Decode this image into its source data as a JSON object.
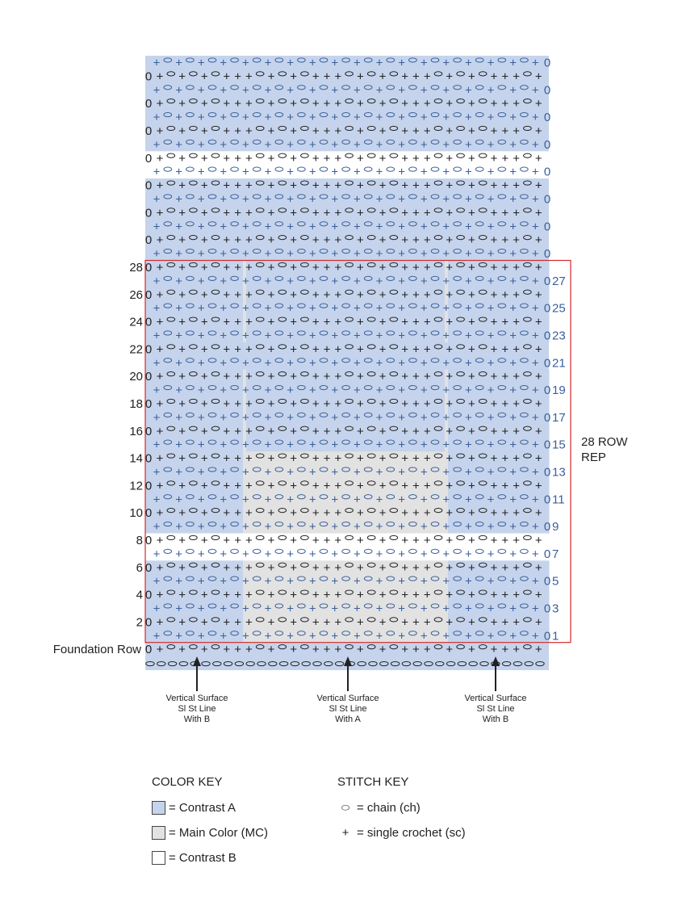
{
  "colors": {
    "contrast_a": "#c5d4ec",
    "main_color": "#e2e2e2",
    "contrast_b": "#ffffff",
    "stitch_dark": "#222222",
    "stitch_blue": "#3a5f9a",
    "rep_box": "#d62a2a"
  },
  "foundation_label": "Foundation Row",
  "rep_label_line1": "28 ROW",
  "rep_label_line2": "REP",
  "left_row_numbers": [
    "28",
    "26",
    "24",
    "22",
    "20",
    "18",
    "16",
    "14",
    "12",
    "10",
    "8",
    "6",
    "4",
    "2"
  ],
  "right_row_numbers": [
    "27",
    "25",
    "23",
    "21",
    "19",
    "17",
    "15",
    "13",
    "11",
    "9",
    "7",
    "5",
    "3",
    "1"
  ],
  "row_start_glyph": "0",
  "section_colors_a": [
    "A",
    "MC",
    "A",
    "MC",
    "A"
  ],
  "section_colors_b": [
    "A",
    "MC",
    "MC",
    "MC",
    "A"
  ],
  "chart_rows": [
    {
      "type": "odd",
      "color": "A"
    },
    {
      "type": "even",
      "color": "A"
    },
    {
      "type": "odd",
      "color": "A"
    },
    {
      "type": "even",
      "color": "A"
    },
    {
      "type": "odd",
      "color": "A"
    },
    {
      "type": "even",
      "color": "A"
    },
    {
      "type": "odd",
      "color": "A"
    },
    {
      "type": "even",
      "color": "B"
    },
    {
      "type": "odd",
      "color": "B"
    },
    {
      "type": "even",
      "color": "A"
    },
    {
      "type": "odd",
      "color": "A"
    },
    {
      "type": "even",
      "color": "A"
    },
    {
      "type": "odd",
      "color": "A"
    },
    {
      "type": "even",
      "color": "A"
    },
    {
      "type": "odd",
      "color": "A"
    },
    {
      "type": "even",
      "color": "S1"
    },
    {
      "type": "odd",
      "color": "S1"
    },
    {
      "type": "even",
      "color": "S1"
    },
    {
      "type": "odd",
      "color": "S1"
    },
    {
      "type": "even",
      "color": "S1"
    },
    {
      "type": "odd",
      "color": "S1"
    },
    {
      "type": "even",
      "color": "A"
    },
    {
      "type": "odd",
      "color": "A"
    },
    {
      "type": "even",
      "color": "S1"
    },
    {
      "type": "odd",
      "color": "S1"
    },
    {
      "type": "even",
      "color": "S1"
    },
    {
      "type": "odd",
      "color": "S1"
    },
    {
      "type": "even",
      "color": "S1"
    },
    {
      "type": "odd",
      "color": "S1"
    },
    {
      "type": "even",
      "color": "S2"
    },
    {
      "type": "odd",
      "color": "S2"
    },
    {
      "type": "even",
      "color": "S2"
    },
    {
      "type": "odd",
      "color": "S2"
    },
    {
      "type": "even",
      "color": "S2"
    },
    {
      "type": "odd",
      "color": "S2"
    },
    {
      "type": "even",
      "color": "B"
    },
    {
      "type": "odd",
      "color": "B"
    },
    {
      "type": "even",
      "color": "S2"
    },
    {
      "type": "odd",
      "color": "S2"
    },
    {
      "type": "even",
      "color": "S2"
    },
    {
      "type": "odd",
      "color": "S2"
    },
    {
      "type": "even",
      "color": "S2"
    },
    {
      "type": "odd",
      "color": "S2"
    },
    {
      "type": "foundation",
      "color": "A"
    },
    {
      "type": "chains",
      "color": "A"
    }
  ],
  "arrows": [
    {
      "line1": "Vertical Surface",
      "line2": "Sl St Line",
      "line3": "With B"
    },
    {
      "line1": "Vertical Surface",
      "line2": "Sl St Line",
      "line3": "With A"
    },
    {
      "line1": "Vertical Surface",
      "line2": "Sl St Line",
      "line3": "With B"
    }
  ],
  "color_key": {
    "title": "COLOR KEY",
    "items": [
      {
        "label": "= Contrast A",
        "color": "#c5d4ec"
      },
      {
        "label": "= Main Color (MC)",
        "color": "#e2e2e2"
      },
      {
        "label": "= Contrast B",
        "color": "#ffffff"
      }
    ]
  },
  "stitch_key": {
    "title": "STITCH KEY",
    "items": [
      {
        "symbol": "⬭",
        "label": "= chain (ch)",
        "icon": "chain-icon"
      },
      {
        "symbol": "+",
        "label": "= single crochet (sc)",
        "icon": "single-crochet-icon"
      }
    ]
  }
}
